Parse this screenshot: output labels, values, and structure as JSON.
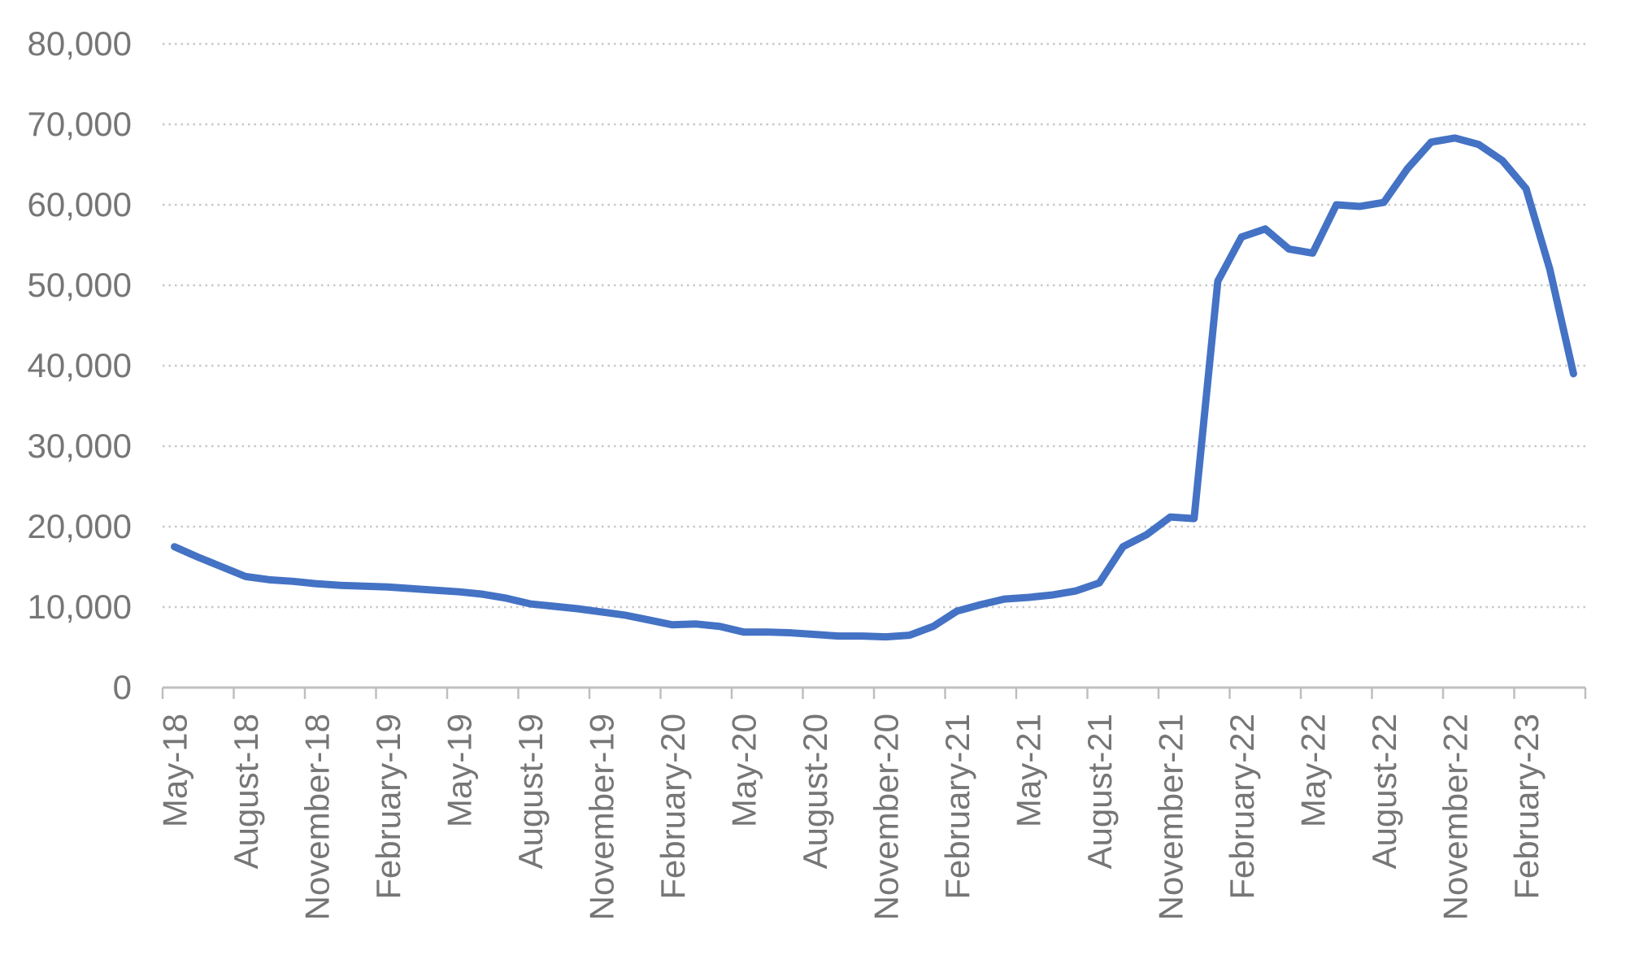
{
  "chart_data": {
    "type": "line",
    "title": "",
    "xlabel": "",
    "ylabel": "",
    "ylim": [
      0,
      80000
    ],
    "y_tick_step": 10000,
    "y_tick_labels": [
      "0",
      "10,000",
      "20,000",
      "30,000",
      "40,000",
      "50,000",
      "60,000",
      "70,000",
      "80,000"
    ],
    "x_tick_every": 3,
    "x_tick_labels_visible": [
      "May-18",
      "August-18",
      "November-18",
      "February-19",
      "May-19",
      "August-19",
      "November-19",
      "February-20",
      "May-20",
      "August-20",
      "November-20",
      "February-21",
      "May-21",
      "August-21",
      "November-21",
      "February-22",
      "May-22",
      "August-22",
      "November-22",
      "February-23"
    ],
    "categories": [
      "May-18",
      "June-18",
      "July-18",
      "August-18",
      "September-18",
      "October-18",
      "November-18",
      "December-18",
      "January-19",
      "February-19",
      "March-19",
      "April-19",
      "May-19",
      "June-19",
      "July-19",
      "August-19",
      "September-19",
      "October-19",
      "November-19",
      "December-19",
      "January-20",
      "February-20",
      "March-20",
      "April-20",
      "May-20",
      "June-20",
      "July-20",
      "August-20",
      "September-20",
      "October-20",
      "November-20",
      "December-20",
      "January-21",
      "February-21",
      "March-21",
      "April-21",
      "May-21",
      "June-21",
      "July-21",
      "August-21",
      "September-21",
      "October-21",
      "November-21",
      "December-21",
      "January-22",
      "February-22",
      "March-22",
      "April-22",
      "May-22",
      "June-22",
      "July-22",
      "August-22",
      "September-22",
      "October-22",
      "November-22",
      "December-22",
      "January-23",
      "February-23",
      "March-23",
      "April-23"
    ],
    "values": [
      17500,
      16200,
      15000,
      13800,
      13400,
      13200,
      12900,
      12700,
      12600,
      12500,
      12300,
      12100,
      11900,
      11600,
      11100,
      10400,
      10100,
      9800,
      9400,
      9000,
      8400,
      7800,
      7900,
      7600,
      6900,
      6900,
      6800,
      6600,
      6400,
      6400,
      6300,
      6500,
      7600,
      9500,
      10300,
      11000,
      11200,
      11500,
      12000,
      13000,
      17500,
      19000,
      21200,
      21000,
      50500,
      56000,
      57000,
      54500,
      54000,
      60000,
      59800,
      60300,
      64500,
      67800,
      68300,
      67500,
      65500,
      62000,
      52000,
      39000
    ],
    "grid": "horizontal-dotted",
    "legend": "none",
    "line_color": "#4472C4",
    "grid_color": "#C8C8C8",
    "axis_color": "#BFBFBF",
    "label_color": "#767676"
  }
}
